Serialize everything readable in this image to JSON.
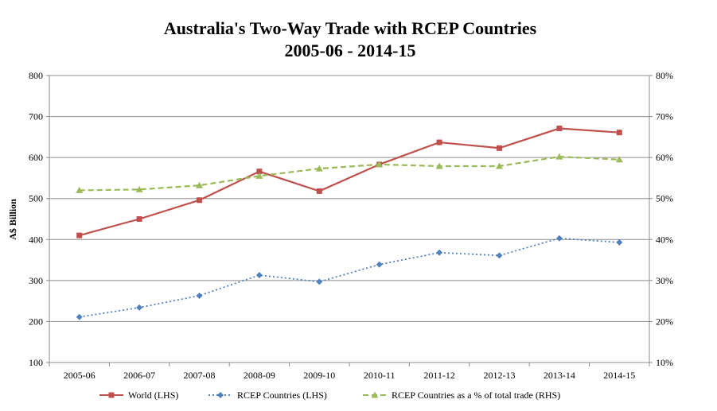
{
  "chart_data": {
    "type": "line",
    "title": "Australia's Two-Way Trade with RCEP Countries",
    "subtitle": "2005-06 - 2014-15",
    "ylabel": "A$ Billion",
    "ylim": [
      100,
      800
    ],
    "y2lim": [
      10,
      80
    ],
    "yticks": [
      "100",
      "200",
      "300",
      "400",
      "500",
      "600",
      "700",
      "800"
    ],
    "y2ticks": [
      "10%",
      "20%",
      "30%",
      "40%",
      "50%",
      "60%",
      "70%",
      "80%"
    ],
    "categories": [
      "2005-06",
      "2006-07",
      "2007-08",
      "2008-09",
      "2009-10",
      "2010-11",
      "2011-12",
      "2012-13",
      "2013-14",
      "2014-15"
    ],
    "grid": true,
    "legend_position": "bottom",
    "series": [
      {
        "name": "World (LHS)",
        "axis": "left",
        "color": "#c0504d",
        "style": "solid",
        "marker": "square",
        "values": [
          410,
          450,
          496,
          566,
          518,
          583,
          637,
          623,
          671,
          661
        ]
      },
      {
        "name": "RCEP Countries (LHS)",
        "axis": "left",
        "color": "#4f81bd",
        "style": "dotted",
        "marker": "diamond",
        "values": [
          211,
          234,
          263,
          313,
          297,
          339,
          368,
          361,
          403,
          393
        ]
      },
      {
        "name": "RCEP Countries as a % of total trade (RHS)",
        "axis": "right",
        "color": "#9bbb59",
        "style": "dashed",
        "marker": "triangle",
        "values": [
          52,
          52.2,
          53.2,
          55.5,
          57.3,
          58.3,
          57.9,
          57.9,
          60.2,
          59.5
        ]
      }
    ]
  }
}
